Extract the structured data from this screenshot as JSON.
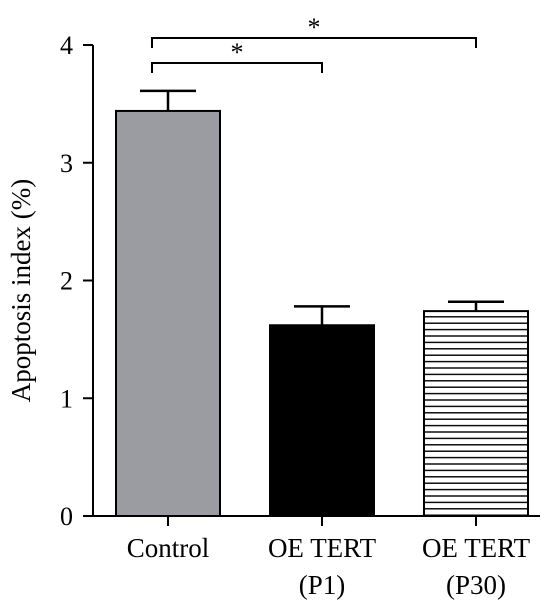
{
  "chart_data": {
    "type": "bar",
    "title": "",
    "ylabel": "Apoptosis index (%)",
    "xlabel": "",
    "ylim": [
      0,
      4
    ],
    "yticks": [
      0,
      1,
      2,
      3,
      4
    ],
    "ytick_labels": [
      "0",
      "1",
      "2",
      "3",
      "4"
    ],
    "categories": [
      {
        "label_lines": [
          "Control"
        ]
      },
      {
        "label_lines": [
          "OE TERT",
          "(P1)"
        ]
      },
      {
        "label_lines": [
          "OE TERT",
          "(P30)"
        ]
      }
    ],
    "values": [
      3.44,
      1.62,
      1.74
    ],
    "error_bars": [
      0.17,
      0.16,
      0.08
    ],
    "bar_styles": [
      "gray-fill",
      "black-fill",
      "horizontal-stripes"
    ],
    "colors": {
      "gray": "#9a9ca2",
      "black": "#000000",
      "stripe": "#000000"
    },
    "significance": [
      {
        "from": 0,
        "to": 1,
        "label": "*"
      },
      {
        "from": 0,
        "to": 2,
        "label": "*"
      }
    ],
    "grid": false,
    "legend": "none"
  }
}
